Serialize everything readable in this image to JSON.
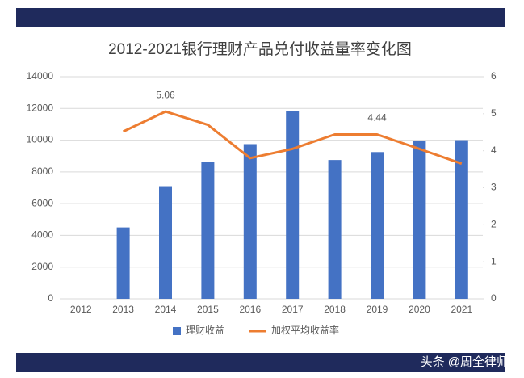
{
  "chart_data": {
    "type": "bar-line",
    "title": "2012-2021银行理财产品兑付收益量率变化图",
    "categories": [
      "2012",
      "2013",
      "2014",
      "2015",
      "2016",
      "2017",
      "2018",
      "2019",
      "2020",
      "2021"
    ],
    "series": [
      {
        "name": "理财收益",
        "type": "bar",
        "color": "#4472c4",
        "values": [
          null,
          4500,
          7100,
          8650,
          9750,
          11850,
          8750,
          9250,
          9950,
          10000
        ]
      },
      {
        "name": "加权平均收益率",
        "type": "line",
        "axis": "y2",
        "color": "#ed7d31",
        "values": [
          null,
          4.52,
          5.06,
          4.7,
          3.8,
          4.05,
          4.44,
          4.44,
          4.05,
          3.65
        ],
        "value_labels": [
          null,
          null,
          "5.06",
          null,
          null,
          null,
          null,
          "4.44",
          null,
          null
        ]
      }
    ],
    "ylim": [
      0,
      14000
    ],
    "yticks": [
      0,
      2000,
      4000,
      6000,
      8000,
      10000,
      12000,
      14000
    ],
    "y2lim": [
      0,
      6
    ],
    "y2ticks": [
      0,
      1,
      2,
      3,
      4,
      5,
      6
    ],
    "grid": true,
    "legend": "bottom"
  },
  "watermark": "头条 @周全律师"
}
